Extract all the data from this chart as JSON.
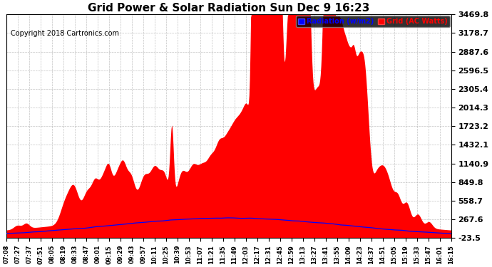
{
  "title": "Grid Power & Solar Radiation Sun Dec 9 16:23",
  "copyright": "Copyright 2018 Cartronics.com",
  "y_ticks": [
    -23.5,
    267.6,
    558.7,
    849.8,
    1140.9,
    1432.1,
    1723.2,
    2014.3,
    2305.4,
    2596.5,
    2887.6,
    3178.7,
    3469.8
  ],
  "x_labels": [
    "07:08",
    "07:27",
    "07:37",
    "07:51",
    "08:05",
    "08:19",
    "08:33",
    "08:47",
    "09:01",
    "09:15",
    "09:29",
    "09:43",
    "09:57",
    "10:11",
    "10:25",
    "10:39",
    "10:53",
    "11:07",
    "11:21",
    "11:35",
    "11:49",
    "12:03",
    "12:17",
    "12:31",
    "12:45",
    "12:59",
    "13:13",
    "13:27",
    "13:41",
    "13:55",
    "14:09",
    "14:23",
    "14:37",
    "14:51",
    "15:05",
    "15:19",
    "15:33",
    "15:47",
    "16:01",
    "16:15"
  ],
  "legend_radiation_label": "Radiation (w/m2)",
  "legend_grid_label": "Grid (AC Watts)",
  "legend_radiation_color": "#0000ff",
  "legend_grid_color": "#ff0000",
  "fill_color": "#ff0000",
  "line_color": "#0000ff",
  "background_color": "#ffffff",
  "title_color": "#000000",
  "copyright_color": "#000000",
  "grid_color": "#aaaaaa",
  "ylim": [
    -23.5,
    3469.8
  ],
  "title_fontsize": 11,
  "copyright_fontsize": 7,
  "tick_fontsize": 8
}
